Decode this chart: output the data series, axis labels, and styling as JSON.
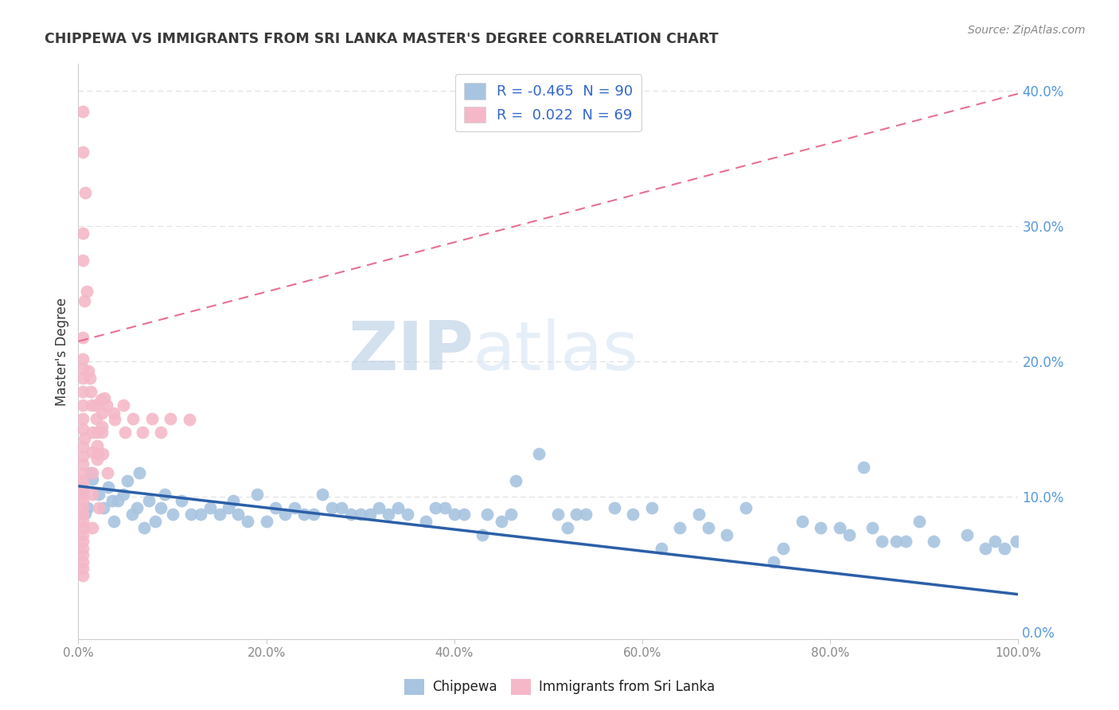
{
  "title": "CHIPPEWA VS IMMIGRANTS FROM SRI LANKA MASTER'S DEGREE CORRELATION CHART",
  "source_text": "Source: ZipAtlas.com",
  "ylabel": "Master's Degree",
  "xlim": [
    0.0,
    1.0
  ],
  "ylim": [
    -0.005,
    0.42
  ],
  "xtick_vals": [
    0.0,
    0.2,
    0.4,
    0.6,
    0.8,
    1.0
  ],
  "xtick_labels": [
    "0.0%",
    "20.0%",
    "40.0%",
    "60.0%",
    "80.0%",
    "100.0%"
  ],
  "ytick_vals": [
    0.0,
    0.1,
    0.2,
    0.3,
    0.4
  ],
  "ytick_labels": [
    "0.0%",
    "10.0%",
    "20.0%",
    "30.0%",
    "40.0%"
  ],
  "legend_line1": "R = -0.465  N = 90",
  "legend_line2": "R =  0.022  N = 69",
  "legend_color1": "#a8c4e0",
  "legend_color2": "#f4b8c8",
  "blue_scatter": [
    [
      0.005,
      0.105
    ],
    [
      0.007,
      0.088
    ],
    [
      0.01,
      0.092
    ],
    [
      0.013,
      0.118
    ],
    [
      0.015,
      0.113
    ],
    [
      0.022,
      0.102
    ],
    [
      0.027,
      0.092
    ],
    [
      0.032,
      0.107
    ],
    [
      0.036,
      0.097
    ],
    [
      0.038,
      0.082
    ],
    [
      0.042,
      0.097
    ],
    [
      0.048,
      0.102
    ],
    [
      0.052,
      0.112
    ],
    [
      0.057,
      0.087
    ],
    [
      0.062,
      0.092
    ],
    [
      0.065,
      0.118
    ],
    [
      0.07,
      0.077
    ],
    [
      0.075,
      0.097
    ],
    [
      0.082,
      0.082
    ],
    [
      0.088,
      0.092
    ],
    [
      0.092,
      0.102
    ],
    [
      0.1,
      0.087
    ],
    [
      0.11,
      0.097
    ],
    [
      0.12,
      0.087
    ],
    [
      0.13,
      0.087
    ],
    [
      0.14,
      0.092
    ],
    [
      0.15,
      0.087
    ],
    [
      0.16,
      0.092
    ],
    [
      0.165,
      0.097
    ],
    [
      0.17,
      0.087
    ],
    [
      0.18,
      0.082
    ],
    [
      0.19,
      0.102
    ],
    [
      0.2,
      0.082
    ],
    [
      0.21,
      0.092
    ],
    [
      0.22,
      0.087
    ],
    [
      0.23,
      0.092
    ],
    [
      0.24,
      0.087
    ],
    [
      0.25,
      0.087
    ],
    [
      0.26,
      0.102
    ],
    [
      0.27,
      0.092
    ],
    [
      0.28,
      0.092
    ],
    [
      0.29,
      0.087
    ],
    [
      0.3,
      0.087
    ],
    [
      0.31,
      0.087
    ],
    [
      0.32,
      0.092
    ],
    [
      0.33,
      0.087
    ],
    [
      0.34,
      0.092
    ],
    [
      0.35,
      0.087
    ],
    [
      0.37,
      0.082
    ],
    [
      0.38,
      0.092
    ],
    [
      0.39,
      0.092
    ],
    [
      0.4,
      0.087
    ],
    [
      0.41,
      0.087
    ],
    [
      0.43,
      0.072
    ],
    [
      0.435,
      0.087
    ],
    [
      0.45,
      0.082
    ],
    [
      0.46,
      0.087
    ],
    [
      0.465,
      0.112
    ],
    [
      0.49,
      0.132
    ],
    [
      0.51,
      0.087
    ],
    [
      0.52,
      0.077
    ],
    [
      0.53,
      0.087
    ],
    [
      0.54,
      0.087
    ],
    [
      0.57,
      0.092
    ],
    [
      0.59,
      0.087
    ],
    [
      0.61,
      0.092
    ],
    [
      0.62,
      0.062
    ],
    [
      0.64,
      0.077
    ],
    [
      0.66,
      0.087
    ],
    [
      0.67,
      0.077
    ],
    [
      0.69,
      0.072
    ],
    [
      0.71,
      0.092
    ],
    [
      0.74,
      0.052
    ],
    [
      0.75,
      0.062
    ],
    [
      0.77,
      0.082
    ],
    [
      0.79,
      0.077
    ],
    [
      0.81,
      0.077
    ],
    [
      0.82,
      0.072
    ],
    [
      0.835,
      0.122
    ],
    [
      0.845,
      0.077
    ],
    [
      0.855,
      0.067
    ],
    [
      0.87,
      0.067
    ],
    [
      0.88,
      0.067
    ],
    [
      0.895,
      0.082
    ],
    [
      0.91,
      0.067
    ],
    [
      0.945,
      0.072
    ],
    [
      0.965,
      0.062
    ],
    [
      0.975,
      0.067
    ],
    [
      0.985,
      0.062
    ],
    [
      0.998,
      0.067
    ]
  ],
  "pink_scatter": [
    [
      0.005,
      0.385
    ],
    [
      0.005,
      0.355
    ],
    [
      0.007,
      0.325
    ],
    [
      0.005,
      0.295
    ],
    [
      0.005,
      0.275
    ],
    [
      0.006,
      0.245
    ],
    [
      0.005,
      0.218
    ],
    [
      0.005,
      0.202
    ],
    [
      0.005,
      0.195
    ],
    [
      0.005,
      0.188
    ],
    [
      0.005,
      0.178
    ],
    [
      0.005,
      0.168
    ],
    [
      0.005,
      0.158
    ],
    [
      0.005,
      0.15
    ],
    [
      0.006,
      0.143
    ],
    [
      0.005,
      0.137
    ],
    [
      0.005,
      0.13
    ],
    [
      0.005,
      0.124
    ],
    [
      0.005,
      0.117
    ],
    [
      0.005,
      0.112
    ],
    [
      0.005,
      0.107
    ],
    [
      0.005,
      0.102
    ],
    [
      0.005,
      0.097
    ],
    [
      0.005,
      0.092
    ],
    [
      0.005,
      0.087
    ],
    [
      0.005,
      0.082
    ],
    [
      0.005,
      0.077
    ],
    [
      0.005,
      0.072
    ],
    [
      0.005,
      0.067
    ],
    [
      0.005,
      0.062
    ],
    [
      0.005,
      0.057
    ],
    [
      0.005,
      0.052
    ],
    [
      0.005,
      0.047
    ],
    [
      0.005,
      0.042
    ],
    [
      0.009,
      0.252
    ],
    [
      0.011,
      0.193
    ],
    [
      0.012,
      0.188
    ],
    [
      0.013,
      0.178
    ],
    [
      0.014,
      0.168
    ],
    [
      0.015,
      0.133
    ],
    [
      0.015,
      0.118
    ],
    [
      0.015,
      0.102
    ],
    [
      0.015,
      0.077
    ],
    [
      0.018,
      0.168
    ],
    [
      0.019,
      0.158
    ],
    [
      0.02,
      0.148
    ],
    [
      0.02,
      0.138
    ],
    [
      0.021,
      0.132
    ],
    [
      0.022,
      0.092
    ],
    [
      0.024,
      0.172
    ],
    [
      0.025,
      0.162
    ],
    [
      0.025,
      0.152
    ],
    [
      0.026,
      0.132
    ],
    [
      0.028,
      0.173
    ],
    [
      0.03,
      0.168
    ],
    [
      0.031,
      0.118
    ],
    [
      0.038,
      0.162
    ],
    [
      0.039,
      0.157
    ],
    [
      0.048,
      0.168
    ],
    [
      0.05,
      0.148
    ],
    [
      0.058,
      0.158
    ],
    [
      0.068,
      0.148
    ],
    [
      0.078,
      0.158
    ],
    [
      0.088,
      0.148
    ],
    [
      0.098,
      0.158
    ],
    [
      0.118,
      0.157
    ],
    [
      0.015,
      0.148
    ],
    [
      0.02,
      0.128
    ],
    [
      0.025,
      0.148
    ]
  ],
  "blue_trendline_x": [
    0.0,
    1.0
  ],
  "blue_trendline_y": [
    0.108,
    0.028
  ],
  "pink_trendline_x": [
    0.0,
    1.0
  ],
  "pink_trendline_y": [
    0.215,
    0.398
  ],
  "background_color": "#ffffff",
  "scatter_blue": "#a8c4e0",
  "scatter_pink": "#f4b8c8",
  "trendline_blue": "#2c5fa8",
  "trendline_pink": "#e87090",
  "trendline_pink_dashed": true,
  "grid_color": "#e0e0e0",
  "right_tick_color": "#5599dd",
  "title_color": "#3a3a3a",
  "source_color": "#888888",
  "ylabel_color": "#3a3a3a",
  "tick_color": "#888888",
  "watermark_zip_color": "#c8d8ea",
  "watermark_atlas_color": "#b8d0e8"
}
